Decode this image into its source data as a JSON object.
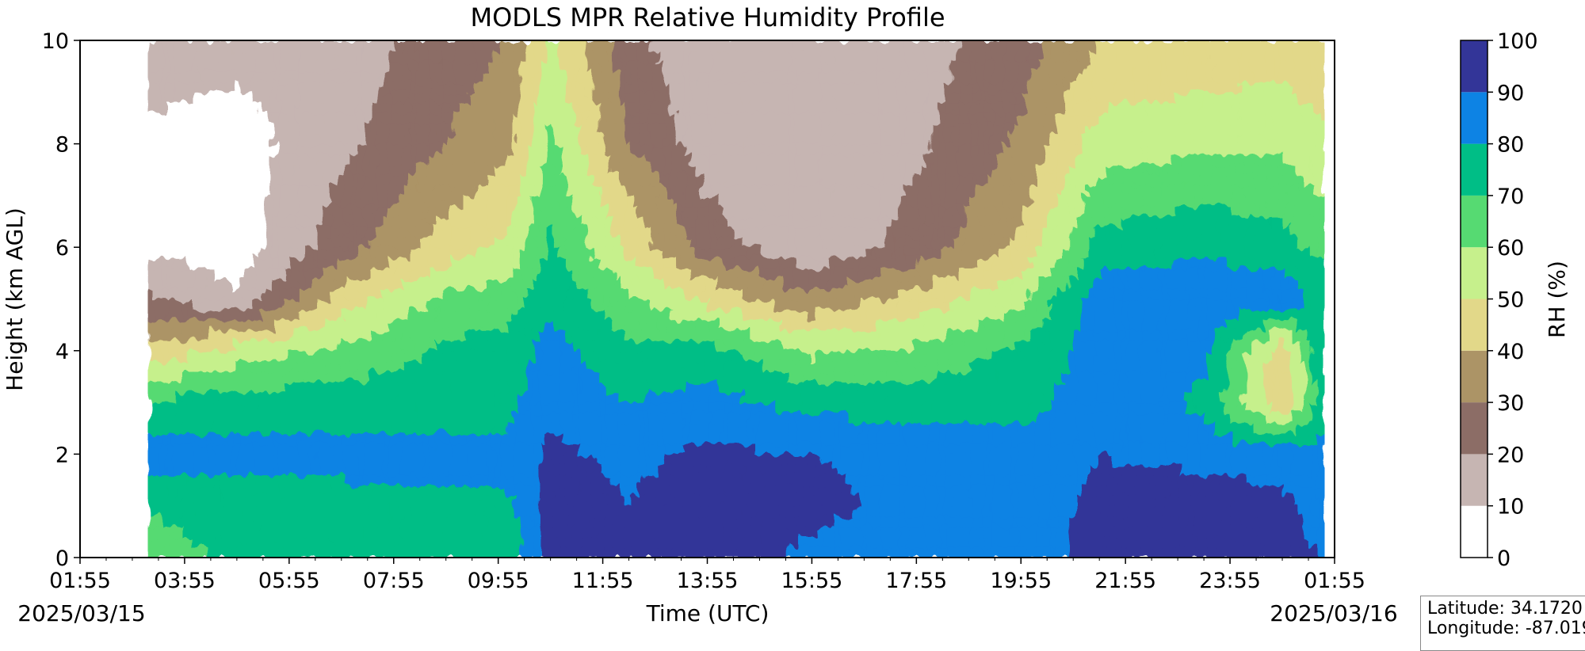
{
  "chart_data": {
    "type": "heatmap",
    "title": "MODLS MPR Relative Humidity Profile",
    "xlabel": "Time (UTC)",
    "ylabel": "Height (km AGL)",
    "x_ticks": [
      "01:55",
      "03:55",
      "05:55",
      "07:55",
      "09:55",
      "11:55",
      "13:55",
      "15:55",
      "17:55",
      "19:55",
      "21:55",
      "23:55",
      "01:55"
    ],
    "x_range_hours": [
      0,
      24
    ],
    "data_start_hours": 1.3,
    "data_end_hours": 23.8,
    "date_start": "2025/03/15",
    "date_end": "2025/03/16",
    "y_ticks": [
      0,
      2,
      4,
      6,
      8,
      10
    ],
    "ylim": [
      0,
      10
    ],
    "colorbar": {
      "label": "RH (%)",
      "levels": [
        0,
        10,
        20,
        30,
        40,
        50,
        60,
        70,
        80,
        90,
        100
      ],
      "ticks": [
        "0",
        "10",
        "20",
        "30",
        "40",
        "50",
        "60",
        "70",
        "80",
        "90",
        "100"
      ],
      "colors": [
        "#ffffff",
        "#c6b5b2",
        "#8c6d66",
        "#ac9466",
        "#e2d889",
        "#c6f08c",
        "#56da72",
        "#00be86",
        "#0d83e4",
        "#333598"
      ]
    },
    "approx_profiles": [
      {
        "time_hours": 1.3,
        "rh_by_height_km": {
          "0": 62,
          "1": 72,
          "2": 84,
          "3": 72,
          "4": 42,
          "5": 22,
          "6": 8,
          "8": 8,
          "10": 15
        }
      },
      {
        "time_hours": 3.0,
        "rh_by_height_km": {
          "0": 74,
          "1": 75,
          "2": 84,
          "3": 74,
          "4": 55,
          "5": 12,
          "6": 5,
          "8": 5,
          "10": 14
        }
      },
      {
        "time_hours": 5.0,
        "rh_by_height_km": {
          "0": 74,
          "1": 76,
          "2": 84,
          "3": 76,
          "4": 62,
          "5": 45,
          "6": 25,
          "8": 18,
          "10": 14
        }
      },
      {
        "time_hours": 7.0,
        "rh_by_height_km": {
          "0": 75,
          "1": 77,
          "2": 84,
          "3": 74,
          "4": 72,
          "5": 62,
          "6": 45,
          "8": 30,
          "10": 25
        }
      },
      {
        "time_hours": 8.2,
        "rh_by_height_km": {
          "0": 72,
          "1": 78,
          "2": 84,
          "3": 76,
          "4": 74,
          "5": 66,
          "6": 52,
          "8": 38,
          "10": 30
        }
      },
      {
        "time_hours": 9.0,
        "rh_by_height_km": {
          "0": 95,
          "1": 94,
          "2": 92,
          "3": 88,
          "4": 84,
          "5": 78,
          "6": 72,
          "8": 62,
          "10": 52
        }
      },
      {
        "time_hours": 10.5,
        "rh_by_height_km": {
          "0": 92,
          "1": 90,
          "2": 88,
          "3": 80,
          "4": 72,
          "5": 62,
          "6": 48,
          "8": 30,
          "10": 22
        }
      },
      {
        "time_hours": 12.0,
        "rh_by_height_km": {
          "0": 95,
          "1": 95,
          "2": 92,
          "3": 84,
          "4": 74,
          "5": 48,
          "6": 25,
          "8": 15,
          "10": 14
        }
      },
      {
        "time_hours": 14.0,
        "rh_by_height_km": {
          "0": 88,
          "1": 92,
          "2": 90,
          "3": 76,
          "4": 58,
          "5": 32,
          "6": 12,
          "8": 12,
          "10": 14
        }
      },
      {
        "time_hours": 16.0,
        "rh_by_height_km": {
          "0": 84,
          "1": 88,
          "2": 88,
          "3": 76,
          "4": 62,
          "5": 44,
          "6": 24,
          "8": 18,
          "10": 16
        }
      },
      {
        "time_hours": 18.0,
        "rh_by_height_km": {
          "0": 85,
          "1": 86,
          "2": 84,
          "3": 76,
          "4": 72,
          "5": 58,
          "6": 42,
          "8": 32,
          "10": 25
        }
      },
      {
        "time_hours": 19.5,
        "rh_by_height_km": {
          "0": 93,
          "1": 92,
          "2": 90,
          "3": 86,
          "4": 84,
          "5": 86,
          "6": 74,
          "8": 55,
          "10": 40
        }
      },
      {
        "time_hours": 21.5,
        "rh_by_height_km": {
          "0": 95,
          "1": 94,
          "2": 88,
          "3": 78,
          "4": 82,
          "5": 88,
          "6": 78,
          "8": 58,
          "10": 42
        }
      },
      {
        "time_hours": 23.0,
        "rh_by_height_km": {
          "0": 94,
          "1": 92,
          "2": 86,
          "3": 40,
          "4": 44,
          "5": 86,
          "6": 74,
          "8": 58,
          "10": 45
        }
      },
      {
        "time_hours": 23.8,
        "rh_by_height_km": {
          "0": 90,
          "1": 86,
          "2": 82,
          "3": 78,
          "4": 80,
          "5": 78,
          "6": 66,
          "8": 52,
          "10": 40
        }
      }
    ]
  },
  "info_box": {
    "latitude": "Latitude: 34.1720",
    "longitude": "Longitude: -87.019"
  }
}
